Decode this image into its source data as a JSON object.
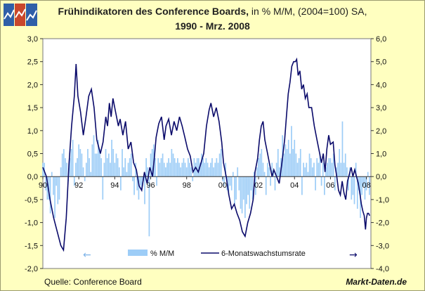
{
  "header": {
    "title_bold": "Frühindikatoren des Conference Boards,",
    "title_rest": " in % M/M, (2004=100) SA,",
    "subtitle": "1990 - Mrz. 2008"
  },
  "footer": {
    "source": "Quelle: Conference Board",
    "brand": "Markt-Daten.de"
  },
  "colors": {
    "bar": "#9dcdf7",
    "line": "#0a0a6a",
    "plot_bg": "#ffffff",
    "page_bg": "#ffffc0"
  },
  "chart_data": {
    "type": "bar+line",
    "title": "Frühindikatoren des Conference Boards, in % M/M, (2004=100) SA, 1990 - Mrz. 2008",
    "x_range": [
      1990.0,
      2008.25
    ],
    "x_ticks": [
      {
        "value": 1990,
        "label": "90"
      },
      {
        "value": 1992,
        "label": "92"
      },
      {
        "value": 1994,
        "label": "94"
      },
      {
        "value": 1996,
        "label": "96"
      },
      {
        "value": 1998,
        "label": "98"
      },
      {
        "value": 2000,
        "label": "00"
      },
      {
        "value": 2002,
        "label": "02"
      },
      {
        "value": 2004,
        "label": "04"
      },
      {
        "value": 2006,
        "label": "06"
      },
      {
        "value": 2008,
        "label": "08"
      }
    ],
    "y_left": {
      "min": -2.0,
      "max": 3.0,
      "step": 0.5,
      "tick_labels": [
        "-2,0",
        "-1,5",
        "-1,0",
        "-0,5",
        "0,0",
        "0,5",
        "1,0",
        "1,5",
        "2,0",
        "2,5",
        "3,0"
      ]
    },
    "y_right": {
      "min": -4.0,
      "max": 6.0,
      "step": 1.0,
      "tick_labels": [
        "-4,0",
        "-3,0",
        "-2,0",
        "-1,0",
        "0,0",
        "1,0",
        "2,0",
        "3,0",
        "4,0",
        "5,0",
        "6,0"
      ]
    },
    "legend": {
      "position": "bottom-center",
      "arrow_left": "←",
      "arrow_right": "→"
    },
    "series": [
      {
        "name": "% M/M",
        "type": "bar",
        "axis": "left",
        "start": 1990.0,
        "step": 0.08333,
        "values": [
          0.3,
          0.3,
          -0.3,
          -0.5,
          -0.5,
          -0.8,
          0.1,
          -0.4,
          -0.9,
          -0.2,
          -0.6,
          -0.5,
          0.2,
          0.5,
          0.6,
          0.4,
          0.3,
          -0.1,
          0.4,
          0.6,
          0.8,
          -0.2,
          0.3,
          0.4,
          0.7,
          0.6,
          0.5,
          0.2,
          -0.1,
          0.3,
          0.6,
          0.4,
          0.1,
          0.7,
          0.9,
          0.5,
          0.5,
          0.8,
          0.6,
          0.4,
          -0.5,
          0.3,
          0.6,
          0.4,
          0.5,
          0.3,
          0.8,
          0.6,
          0.3,
          0.5,
          0.4,
          0.2,
          -0.3,
          0.6,
          0.2,
          0.4,
          0.1,
          0.3,
          0.4,
          0.5,
          -0.1,
          -0.4,
          0.3,
          -0.3,
          -0.5,
          -0.2,
          -0.3,
          -0.1,
          -0.6,
          0.4,
          0.2,
          -1.3,
          0.5,
          0.6,
          0.7,
          0.4,
          -0.2,
          0.4,
          0.3,
          0.4,
          0.5,
          0.3,
          0.2,
          0.3,
          0.4,
          0.3,
          0.6,
          0.5,
          0.4,
          0.3,
          0.4,
          0.3,
          0.2,
          0.3,
          0.4,
          0.3,
          0.2,
          0.4,
          0.3,
          0.2,
          -0.1,
          0.4,
          0.3,
          0.4,
          0.4,
          0.3,
          0.5,
          0.4,
          0.3,
          0.4,
          0.3,
          0.2,
          0.3,
          0.4,
          0.2,
          0.3,
          0.4,
          0.3,
          0.5,
          0.6,
          -0.1,
          -0.2,
          0.3,
          -0.3,
          -0.4,
          -0.2,
          -0.3,
          0.1,
          -0.6,
          -0.5,
          0.2,
          -0.3,
          -0.7,
          -0.8,
          -0.5,
          -0.9,
          -0.6,
          -0.4,
          -0.7,
          -0.3,
          -0.5,
          0.1,
          -0.4,
          0.2,
          0.4,
          0.5,
          0.6,
          0.3,
          0.1,
          -0.4,
          0.3,
          0.2,
          -0.2,
          0.3,
          0.1,
          -0.3,
          0.3,
          0.6,
          0.2,
          0.4,
          0.9,
          0.5,
          0.7,
          0.6,
          0.8,
          0.5,
          1.1,
          0.6,
          0.8,
          0.5,
          0.3,
          0.4,
          0.6,
          -0.4,
          0.3,
          0.2,
          0.3,
          0.1,
          0.5,
          0.4,
          0.2,
          0.3,
          -0.3,
          0.4,
          0.3,
          0.5,
          -0.2,
          0.3,
          -0.4,
          0.2,
          0.3,
          0.4,
          0.4,
          0.3,
          0.5,
          -0.3,
          0.2,
          0.3,
          0.6,
          0.3,
          1.2,
          0.3,
          0.5,
          0.2,
          -0.3,
          0.2,
          -0.5,
          -0.4,
          -0.6,
          0.3,
          -0.7,
          -0.3,
          -0.9,
          -0.4,
          -0.2,
          -0.5,
          -0.3,
          0.1,
          -0.4
        ]
      },
      {
        "name": "6-Monatswachstumsrate",
        "type": "line",
        "axis": "right",
        "points": [
          [
            1990.0,
            0.4
          ],
          [
            1990.2,
            0.0
          ],
          [
            1990.4,
            -1.0
          ],
          [
            1990.6,
            -1.8
          ],
          [
            1990.8,
            -2.4
          ],
          [
            1991.0,
            -3.0
          ],
          [
            1991.15,
            -3.2
          ],
          [
            1991.3,
            -1.8
          ],
          [
            1991.45,
            0.5
          ],
          [
            1991.6,
            2.2
          ],
          [
            1991.75,
            3.5
          ],
          [
            1991.85,
            4.9
          ],
          [
            1991.95,
            3.5
          ],
          [
            1992.1,
            2.8
          ],
          [
            1992.25,
            1.8
          ],
          [
            1992.4,
            2.6
          ],
          [
            1992.55,
            3.5
          ],
          [
            1992.7,
            3.8
          ],
          [
            1992.85,
            3.0
          ],
          [
            1993.0,
            1.6
          ],
          [
            1993.2,
            1.0
          ],
          [
            1993.35,
            1.5
          ],
          [
            1993.5,
            2.6
          ],
          [
            1993.6,
            2.2
          ],
          [
            1993.7,
            3.2
          ],
          [
            1993.8,
            2.6
          ],
          [
            1993.9,
            3.4
          ],
          [
            1994.05,
            2.8
          ],
          [
            1994.2,
            2.2
          ],
          [
            1994.3,
            2.5
          ],
          [
            1994.45,
            1.8
          ],
          [
            1994.6,
            2.4
          ],
          [
            1994.75,
            1.2
          ],
          [
            1994.9,
            1.5
          ],
          [
            1995.05,
            0.6
          ],
          [
            1995.2,
            0.3
          ],
          [
            1995.35,
            -0.4
          ],
          [
            1995.5,
            -0.6
          ],
          [
            1995.65,
            0.2
          ],
          [
            1995.8,
            -0.3
          ],
          [
            1995.95,
            0.4
          ],
          [
            1996.1,
            0.0
          ],
          [
            1996.2,
            0.8
          ],
          [
            1996.3,
            1.7
          ],
          [
            1996.45,
            2.3
          ],
          [
            1996.6,
            2.6
          ],
          [
            1996.75,
            1.6
          ],
          [
            1996.85,
            2.2
          ],
          [
            1997.0,
            2.5
          ],
          [
            1997.15,
            1.8
          ],
          [
            1997.3,
            2.4
          ],
          [
            1997.45,
            2.0
          ],
          [
            1997.6,
            2.6
          ],
          [
            1997.75,
            2.2
          ],
          [
            1997.9,
            1.7
          ],
          [
            1998.05,
            1.2
          ],
          [
            1998.2,
            0.9
          ],
          [
            1998.35,
            0.2
          ],
          [
            1998.5,
            0.4
          ],
          [
            1998.65,
            0.2
          ],
          [
            1998.8,
            0.6
          ],
          [
            1998.95,
            1.0
          ],
          [
            1999.1,
            2.2
          ],
          [
            1999.25,
            2.9
          ],
          [
            1999.35,
            3.2
          ],
          [
            1999.5,
            2.6
          ],
          [
            1999.65,
            3.0
          ],
          [
            1999.8,
            2.4
          ],
          [
            1999.95,
            1.5
          ],
          [
            2000.05,
            0.6
          ],
          [
            2000.2,
            0.0
          ],
          [
            2000.35,
            -0.8
          ],
          [
            2000.5,
            -1.4
          ],
          [
            2000.65,
            -1.2
          ],
          [
            2000.8,
            -1.6
          ],
          [
            2000.95,
            -1.9
          ],
          [
            2001.1,
            -2.4
          ],
          [
            2001.25,
            -2.6
          ],
          [
            2001.4,
            -2.0
          ],
          [
            2001.55,
            -1.6
          ],
          [
            2001.7,
            -1.0
          ],
          [
            2001.8,
            0.2
          ],
          [
            2001.95,
            0.8
          ],
          [
            2002.05,
            1.6
          ],
          [
            2002.15,
            2.2
          ],
          [
            2002.25,
            2.4
          ],
          [
            2002.35,
            1.6
          ],
          [
            2002.5,
            1.0
          ],
          [
            2002.6,
            0.6
          ],
          [
            2002.75,
            0.0
          ],
          [
            2002.85,
            0.3
          ],
          [
            2003.0,
            0.0
          ],
          [
            2003.15,
            -0.3
          ],
          [
            2003.3,
            0.6
          ],
          [
            2003.45,
            1.6
          ],
          [
            2003.55,
            2.6
          ],
          [
            2003.65,
            3.6
          ],
          [
            2003.75,
            4.1
          ],
          [
            2003.85,
            4.8
          ],
          [
            2003.95,
            5.0
          ],
          [
            2004.05,
            5.0
          ],
          [
            2004.12,
            5.1
          ],
          [
            2004.2,
            4.4
          ],
          [
            2004.3,
            4.6
          ],
          [
            2004.4,
            3.8
          ],
          [
            2004.5,
            4.0
          ],
          [
            2004.6,
            3.4
          ],
          [
            2004.7,
            3.6
          ],
          [
            2004.8,
            3.0
          ],
          [
            2004.95,
            3.0
          ],
          [
            2005.1,
            2.2
          ],
          [
            2005.25,
            1.6
          ],
          [
            2005.4,
            1.0
          ],
          [
            2005.5,
            0.6
          ],
          [
            2005.6,
            1.0
          ],
          [
            2005.7,
            0.2
          ],
          [
            2005.8,
            1.2
          ],
          [
            2005.9,
            1.8
          ],
          [
            2006.0,
            1.4
          ],
          [
            2006.15,
            1.5
          ],
          [
            2006.25,
            0.5
          ],
          [
            2006.35,
            0.0
          ],
          [
            2006.45,
            -0.6
          ],
          [
            2006.55,
            -0.8
          ],
          [
            2006.65,
            -0.2
          ],
          [
            2006.75,
            -0.7
          ],
          [
            2006.85,
            -1.0
          ],
          [
            2006.95,
            -0.2
          ],
          [
            2007.05,
            0.1
          ],
          [
            2007.15,
            0.4
          ],
          [
            2007.25,
            0.0
          ],
          [
            2007.35,
            0.3
          ],
          [
            2007.45,
            0.0
          ],
          [
            2007.55,
            -0.3
          ],
          [
            2007.65,
            -0.8
          ],
          [
            2007.72,
            -1.2
          ],
          [
            2007.8,
            -1.5
          ],
          [
            2007.88,
            -1.7
          ],
          [
            2007.95,
            -2.3
          ],
          [
            2008.0,
            -1.8
          ],
          [
            2008.06,
            -1.6
          ],
          [
            2008.12,
            -1.6
          ],
          [
            2008.18,
            -1.7
          ]
        ]
      }
    ]
  }
}
